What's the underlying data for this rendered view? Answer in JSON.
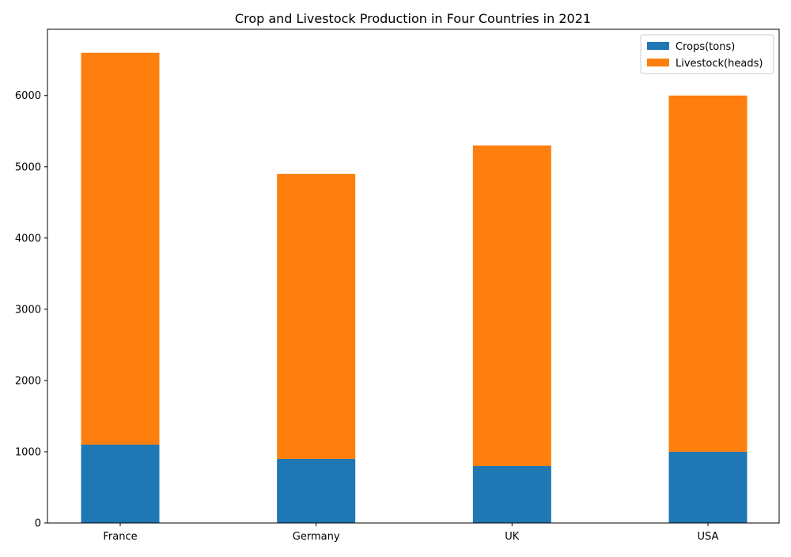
{
  "chart_data": {
    "type": "bar",
    "stacked": true,
    "title": "Crop and Livestock Production in Four Countries in 2021",
    "xlabel": "",
    "ylabel": "",
    "categories": [
      "France",
      "Germany",
      "UK",
      "USA"
    ],
    "series": [
      {
        "name": "Crops(tons)",
        "values": [
          1100,
          900,
          800,
          1000
        ],
        "color": "#1f77b4"
      },
      {
        "name": "Livestock(heads)",
        "values": [
          5500,
          4000,
          4500,
          5000
        ],
        "color": "#ff7f0e"
      }
    ],
    "ylim": [
      0,
      6930
    ],
    "yticks": [
      0,
      1000,
      2000,
      3000,
      4000,
      5000,
      6000
    ],
    "legend_position": "top-right",
    "grid": false
  }
}
